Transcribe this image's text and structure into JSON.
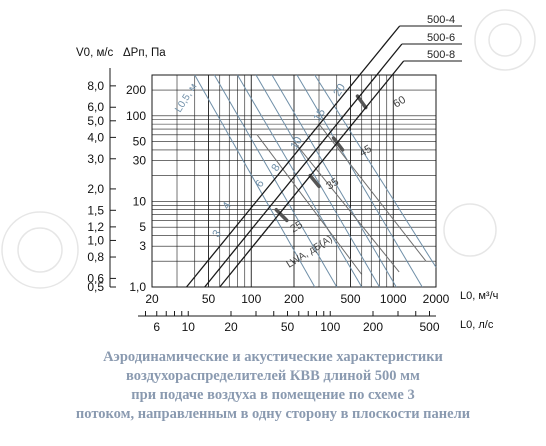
{
  "colors": {
    "line": "#1a1a1a",
    "velocity_lines": "#6f8fa8",
    "noise_lines": "#6f6f6f",
    "caption": "#8a9ab0",
    "watermark": "#e6e6e6"
  },
  "chart_data": {
    "type": "line",
    "x_scale": "log",
    "y_scale": "log",
    "x_primary": {
      "label": "L0, м³/ч",
      "ticks": [
        20,
        50,
        100,
        200,
        500,
        1000,
        2000
      ],
      "range": [
        20,
        2000
      ]
    },
    "x_secondary": {
      "label": "L0, л/с",
      "ticks": [
        6,
        10,
        20,
        50,
        100,
        200,
        500
      ]
    },
    "y_pressure": {
      "label": "ΔPп, Па",
      "ticks": [
        1,
        3,
        5,
        10,
        30,
        50,
        100,
        200
      ],
      "range": [
        1,
        300
      ],
      "tick_labels": [
        "1,0",
        "3",
        "5",
        "10",
        "30",
        "50",
        "100",
        "200"
      ]
    },
    "y_velocity": {
      "label": "V0, м/с",
      "tick_labels": [
        "0,5",
        "0,6",
        "0,8",
        "1,0",
        "1,2",
        "1,5",
        "2,0",
        "3,0",
        "4,0",
        "5,0",
        "6,0",
        "8,0"
      ]
    },
    "series": [
      {
        "name": "500-4",
        "x": [
          35,
          530
        ],
        "y": [
          1,
          250
        ]
      },
      {
        "name": "500-6",
        "x": [
          47,
          700
        ],
        "y": [
          1,
          250
        ]
      },
      {
        "name": "500-8",
        "x": [
          60,
          900
        ],
        "y": [
          1,
          250
        ]
      }
    ],
    "velocity_lines": {
      "label": "L0,5, м",
      "values": [
        "3",
        "4",
        "6",
        "8",
        "10",
        "15",
        "20"
      ]
    },
    "noise_levels": {
      "label": "LWA, дБ(А)",
      "values": [
        "25",
        "35",
        "45",
        "60"
      ]
    },
    "grid": true
  },
  "caption_lines": [
    "Аэродинамические и акустические характеристики",
    "воздухораспределителей КВВ длиной 500 мм",
    "при подаче воздуха в помещение по схеме 3",
    "потоком, направленным в одну сторону в плоскости панели"
  ]
}
